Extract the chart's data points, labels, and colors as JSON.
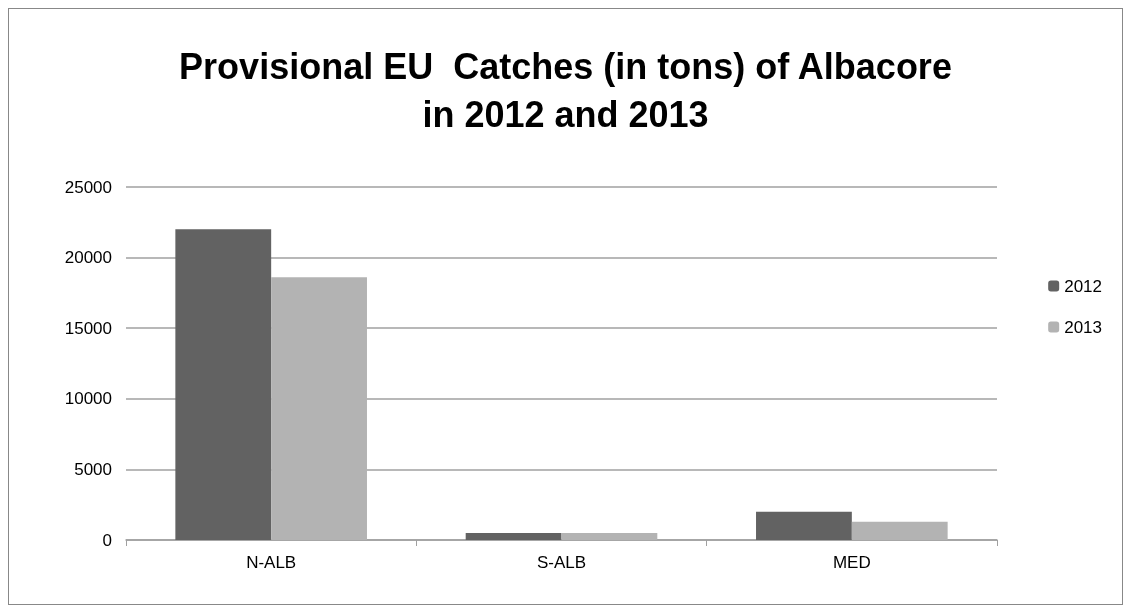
{
  "chart_data": {
    "type": "bar",
    "title": "Provisional EU  Catches (in tons) of Albacore\nin 2012 and 2013",
    "categories": [
      "N-ALB",
      "S-ALB",
      "MED"
    ],
    "series": [
      {
        "name": "2012",
        "color": "#626262",
        "values": [
          22000,
          500,
          2000
        ]
      },
      {
        "name": "2013",
        "color": "#b3b3b3",
        "values": [
          18600,
          500,
          1300
        ]
      }
    ],
    "ylim": [
      0,
      25000
    ],
    "yticks": [
      0,
      5000,
      10000,
      15000,
      20000,
      25000
    ],
    "grid": "y",
    "legend": "right"
  }
}
